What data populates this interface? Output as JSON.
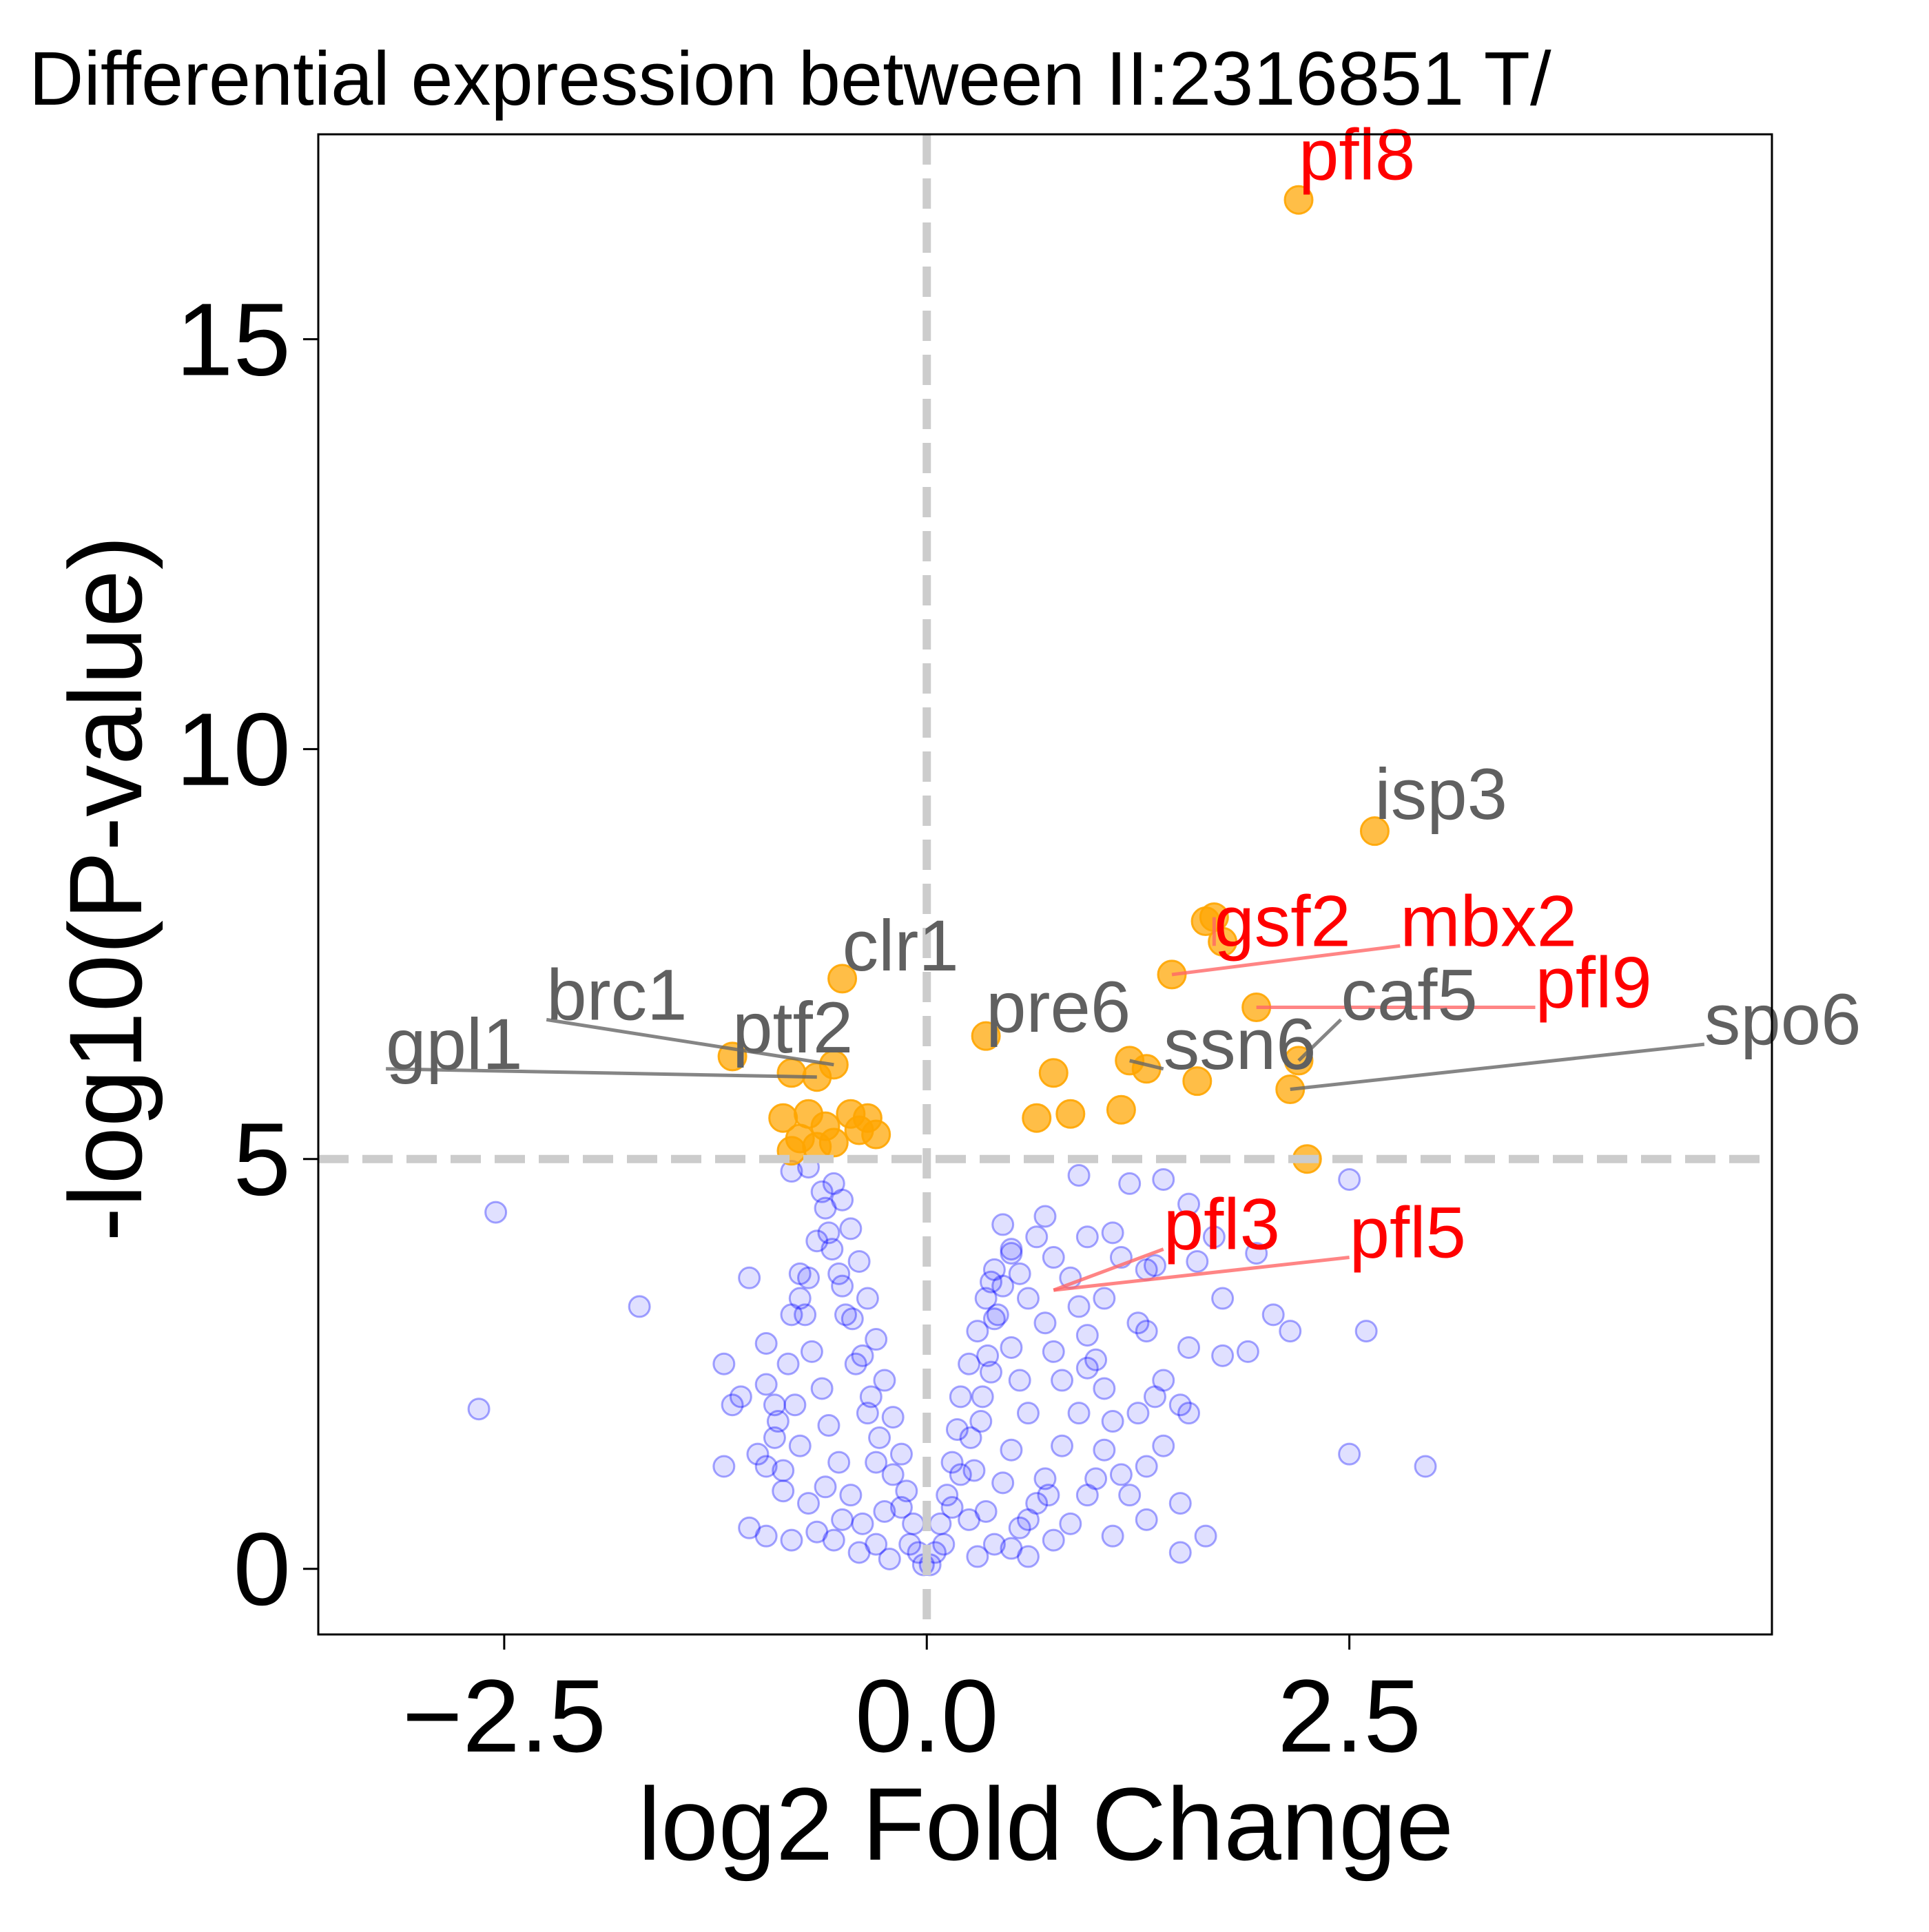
{
  "chart_data": {
    "type": "scatter",
    "title": "Differential expression between II:2316851 T/",
    "xlabel": "log2 Fold Change",
    "ylabel": "-log10(P-value)",
    "xlim": [
      -3.6,
      5.0
    ],
    "ylim": [
      -0.8,
      17.5
    ],
    "xticks": [
      -2.5,
      0.0,
      2.5
    ],
    "xtick_labels": [
      "−2.5",
      "0.0",
      "2.5"
    ],
    "yticks": [
      0,
      5,
      10,
      15
    ],
    "ytick_labels": [
      "0",
      "5",
      "10",
      "15"
    ],
    "grid": false,
    "legend": "none",
    "thresholds": {
      "x": 0.0,
      "y": 5.0
    },
    "colors": {
      "significant": "#FFA500",
      "nonsignificant": "#0000FF",
      "threshold_line": "#CCCCCC",
      "label_highlight": "#FF0000",
      "label_default": "#606060"
    },
    "series": [
      {
        "role": "significant",
        "points": [
          [
            2.2,
            16.7
          ],
          [
            2.65,
            9.0
          ],
          [
            1.7,
            7.95
          ],
          [
            1.65,
            7.9
          ],
          [
            1.75,
            7.65
          ],
          [
            1.45,
            7.25
          ],
          [
            1.95,
            6.85
          ],
          [
            -0.5,
            7.2
          ],
          [
            0.35,
            6.5
          ],
          [
            -1.15,
            6.25
          ],
          [
            -0.8,
            6.05
          ],
          [
            -0.65,
            6.0
          ],
          [
            -0.55,
            6.15
          ],
          [
            0.75,
            6.05
          ],
          [
            1.2,
            6.2
          ],
          [
            1.3,
            6.1
          ],
          [
            1.6,
            5.95
          ],
          [
            2.2,
            6.2
          ],
          [
            2.15,
            5.85
          ],
          [
            0.85,
            5.55
          ],
          [
            0.65,
            5.5
          ],
          [
            1.15,
            5.6
          ],
          [
            -0.7,
            5.55
          ],
          [
            -0.85,
            5.5
          ],
          [
            -0.6,
            5.4
          ],
          [
            -0.45,
            5.55
          ],
          [
            -0.35,
            5.5
          ],
          [
            -0.55,
            5.2
          ],
          [
            -0.4,
            5.35
          ],
          [
            -0.75,
            5.25
          ],
          [
            -0.8,
            5.1
          ],
          [
            -0.65,
            5.15
          ],
          [
            -0.3,
            5.3
          ],
          [
            2.25,
            5.0
          ]
        ]
      },
      {
        "role": "nonsignificant",
        "points": [
          [
            -2.55,
            4.35
          ],
          [
            -1.7,
            3.2
          ],
          [
            -2.65,
            1.95
          ],
          [
            -1.2,
            2.5
          ],
          [
            -1.1,
            2.1
          ],
          [
            -1.15,
            2.0
          ],
          [
            -1.05,
            3.55
          ],
          [
            -0.95,
            2.75
          ],
          [
            -0.9,
            2.0
          ],
          [
            -1.0,
            1.4
          ],
          [
            -1.05,
            0.5
          ],
          [
            -0.95,
            0.4
          ],
          [
            -0.8,
            0.35
          ],
          [
            -0.85,
            0.95
          ],
          [
            -0.9,
            1.6
          ],
          [
            -1.2,
            1.25
          ],
          [
            -0.95,
            1.25
          ],
          [
            -0.8,
            3.1
          ],
          [
            -0.75,
            3.3
          ],
          [
            -0.8,
            4.85
          ],
          [
            -0.7,
            4.9
          ],
          [
            -0.75,
            3.6
          ],
          [
            1.55,
            4.45
          ],
          [
            1.4,
            4.75
          ],
          [
            1.2,
            4.7
          ],
          [
            0.9,
            4.8
          ],
          [
            0.95,
            4.05
          ],
          [
            1.1,
            4.1
          ],
          [
            1.15,
            3.8
          ],
          [
            1.3,
            3.65
          ],
          [
            1.35,
            3.7
          ],
          [
            1.6,
            3.75
          ],
          [
            1.7,
            4.05
          ],
          [
            1.75,
            3.3
          ],
          [
            1.95,
            3.85
          ],
          [
            2.05,
            3.1
          ],
          [
            2.15,
            2.9
          ],
          [
            1.9,
            2.65
          ],
          [
            1.75,
            2.6
          ],
          [
            1.55,
            2.7
          ],
          [
            1.4,
            2.3
          ],
          [
            1.5,
            2.0
          ],
          [
            1.55,
            1.9
          ],
          [
            1.4,
            1.5
          ],
          [
            1.3,
            1.25
          ],
          [
            1.2,
            0.9
          ],
          [
            1.3,
            0.6
          ],
          [
            1.5,
            0.8
          ],
          [
            1.65,
            0.4
          ],
          [
            1.5,
            0.2
          ],
          [
            1.1,
            0.4
          ],
          [
            2.5,
            4.75
          ],
          [
            2.6,
            2.9
          ],
          [
            2.5,
            1.4
          ],
          [
            2.95,
            1.25
          ],
          [
            0.45,
            4.2
          ],
          [
            0.65,
            4.05
          ],
          [
            0.75,
            3.8
          ],
          [
            0.85,
            3.55
          ],
          [
            0.9,
            3.2
          ],
          [
            0.95,
            2.85
          ],
          [
            1.0,
            2.55
          ],
          [
            1.05,
            2.2
          ],
          [
            1.1,
            1.8
          ],
          [
            1.05,
            1.45
          ],
          [
            1.15,
            1.15
          ],
          [
            0.95,
            0.9
          ],
          [
            0.85,
            0.55
          ],
          [
            0.75,
            0.35
          ],
          [
            0.6,
            0.15
          ],
          [
            0.5,
            0.25
          ],
          [
            0.55,
            0.5
          ],
          [
            0.65,
            0.8
          ],
          [
            0.7,
            1.1
          ],
          [
            0.8,
            1.5
          ],
          [
            0.9,
            1.9
          ],
          [
            0.8,
            2.3
          ],
          [
            0.75,
            2.65
          ],
          [
            0.7,
            3.0
          ],
          [
            0.6,
            3.3
          ],
          [
            0.55,
            3.6
          ],
          [
            0.5,
            3.85
          ],
          [
            0.4,
            3.65
          ],
          [
            0.35,
            3.3
          ],
          [
            0.3,
            2.9
          ],
          [
            0.25,
            2.5
          ],
          [
            0.2,
            2.1
          ],
          [
            0.18,
            1.7
          ],
          [
            0.15,
            1.3
          ],
          [
            0.12,
            0.9
          ],
          [
            0.08,
            0.55
          ],
          [
            0.05,
            0.2
          ],
          [
            0.02,
            0.05
          ],
          [
            -0.02,
            0.05
          ],
          [
            -0.05,
            0.2
          ],
          [
            -0.08,
            0.55
          ],
          [
            -0.12,
            0.95
          ],
          [
            -0.15,
            1.4
          ],
          [
            -0.2,
            1.85
          ],
          [
            -0.25,
            2.3
          ],
          [
            -0.3,
            2.8
          ],
          [
            -0.35,
            3.3
          ],
          [
            -0.4,
            3.75
          ],
          [
            -0.45,
            4.15
          ],
          [
            -0.5,
            4.5
          ],
          [
            -0.55,
            4.7
          ],
          [
            -0.6,
            4.4
          ],
          [
            -0.65,
            4.0
          ],
          [
            -0.7,
            3.55
          ],
          [
            -0.72,
            3.1
          ],
          [
            -0.68,
            2.65
          ],
          [
            -0.62,
            2.2
          ],
          [
            -0.58,
            1.75
          ],
          [
            -0.52,
            1.3
          ],
          [
            -0.45,
            0.9
          ],
          [
            -0.38,
            0.55
          ],
          [
            -0.3,
            0.3
          ],
          [
            -0.22,
            0.12
          ],
          [
            -0.5,
            0.6
          ],
          [
            -0.6,
            1.0
          ],
          [
            -0.75,
            1.5
          ],
          [
            -0.78,
            2.0
          ],
          [
            -0.82,
            2.5
          ],
          [
            -0.55,
            0.35
          ],
          [
            -0.4,
            0.2
          ],
          [
            0.3,
            0.15
          ],
          [
            0.4,
            0.3
          ],
          [
            0.35,
            0.7
          ],
          [
            0.45,
            1.05
          ],
          [
            0.5,
            1.45
          ],
          [
            0.6,
            1.9
          ],
          [
            0.55,
            2.3
          ],
          [
            0.5,
            2.7
          ],
          [
            0.42,
            3.1
          ],
          [
            0.38,
            3.5
          ],
          [
            0.25,
            0.6
          ],
          [
            0.28,
            1.2
          ],
          [
            0.32,
            1.8
          ],
          [
            0.38,
            2.4
          ],
          [
            -0.25,
            0.7
          ],
          [
            -0.3,
            1.3
          ],
          [
            -0.35,
            1.9
          ],
          [
            -0.42,
            2.5
          ],
          [
            -0.48,
            3.1
          ],
          [
            -0.52,
            3.6
          ],
          [
            -0.58,
            4.1
          ],
          [
            -0.62,
            4.6
          ],
          [
            -0.1,
            0.3
          ],
          [
            0.1,
            0.3
          ],
          [
            -0.15,
            0.75
          ],
          [
            0.15,
            0.75
          ],
          [
            -0.2,
            1.15
          ],
          [
            0.2,
            1.15
          ],
          [
            -0.28,
            1.6
          ],
          [
            0.26,
            1.6
          ],
          [
            -0.33,
            2.1
          ],
          [
            0.33,
            2.1
          ],
          [
            -0.38,
            2.6
          ],
          [
            0.36,
            2.6
          ],
          [
            -0.44,
            3.05
          ],
          [
            0.4,
            3.05
          ],
          [
            -0.5,
            3.45
          ],
          [
            0.45,
            3.45
          ],
          [
            -0.56,
            3.9
          ],
          [
            0.5,
            3.9
          ],
          [
            1.25,
            1.9
          ],
          [
            1.35,
            2.1
          ],
          [
            1.0,
            1.1
          ],
          [
            0.95,
            2.45
          ],
          [
            1.25,
            3.0
          ],
          [
            0.7,
            4.3
          ],
          [
            1.05,
            3.3
          ],
          [
            1.3,
            2.9
          ],
          [
            -0.95,
            2.25
          ],
          [
            -0.88,
            1.8
          ],
          [
            -0.85,
            1.2
          ],
          [
            -0.7,
            0.8
          ],
          [
            -0.65,
            0.45
          ],
          [
            0.6,
            0.6
          ],
          [
            0.72,
            0.9
          ]
        ]
      }
    ],
    "annotations": [
      {
        "text": "pfl8",
        "color": "red",
        "point": [
          2.2,
          16.7
        ],
        "label_at": [
          2.2,
          16.95
        ]
      },
      {
        "text": "isp3",
        "color": "gray",
        "point": [
          2.65,
          9.0
        ],
        "label_at": [
          2.65,
          9.15
        ]
      },
      {
        "text": "gsf2",
        "color": "red",
        "point": [
          1.7,
          7.95
        ],
        "label_at": [
          1.7,
          7.6
        ]
      },
      {
        "text": "mbx2",
        "color": "red",
        "point": [
          1.45,
          7.25
        ],
        "label_at": [
          2.8,
          7.6
        ]
      },
      {
        "text": "pfl9",
        "color": "red",
        "point": [
          1.95,
          6.85
        ],
        "label_at": [
          3.6,
          6.85
        ]
      },
      {
        "text": "caf5",
        "color": "gray",
        "point": [
          2.2,
          6.2
        ],
        "label_at": [
          2.45,
          6.7
        ]
      },
      {
        "text": "spo6",
        "color": "gray",
        "point": [
          2.15,
          5.85
        ],
        "label_at": [
          4.6,
          6.4
        ]
      },
      {
        "text": "ssn6",
        "color": "gray",
        "point": [
          1.2,
          6.2
        ],
        "label_at": [
          1.4,
          6.1
        ]
      },
      {
        "text": "pre6",
        "color": "gray",
        "point": [
          0.35,
          6.5
        ],
        "label_at": [
          0.35,
          6.55
        ]
      },
      {
        "text": "clr1",
        "color": "gray",
        "point": [
          -0.5,
          7.2
        ],
        "label_at": [
          -0.5,
          7.3
        ]
      },
      {
        "text": "ptf2",
        "color": "gray",
        "point": [
          -1.15,
          6.25
        ],
        "label_at": [
          -1.15,
          6.3
        ]
      },
      {
        "text": "brc1",
        "color": "gray",
        "point": [
          -0.55,
          6.15
        ],
        "label_at": [
          -2.25,
          6.7
        ]
      },
      {
        "text": "gpl1",
        "color": "gray",
        "point": [
          -0.65,
          6.0
        ],
        "label_at": [
          -3.2,
          6.1
        ]
      },
      {
        "text": "pfl3",
        "color": "red",
        "point": [
          0.75,
          3.4
        ],
        "label_at": [
          1.4,
          3.9
        ]
      },
      {
        "text": "pfl5",
        "color": "red",
        "point": [
          0.75,
          3.4
        ],
        "label_at": [
          2.5,
          3.8
        ]
      }
    ]
  }
}
